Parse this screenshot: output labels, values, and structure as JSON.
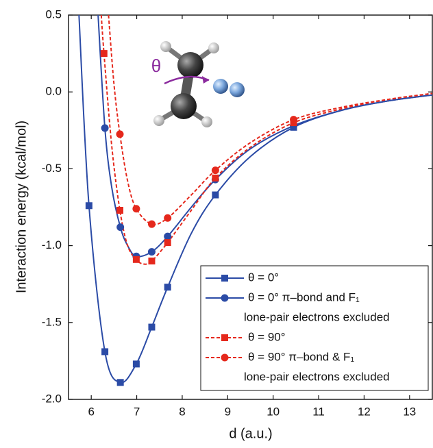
{
  "chart_data": {
    "type": "line",
    "x_label": "d (a.u.)",
    "y_label": "Interaction energy (kcal/mol)",
    "annotation": "θ",
    "xlim": [
      5.5,
      13.5
    ],
    "xticks": [
      6,
      7,
      8,
      9,
      10,
      11,
      12,
      13
    ],
    "ylim": [
      -2.0,
      0.5
    ],
    "yticks": [
      {
        "value": -2.0,
        "label": "-2.0"
      },
      {
        "value": -1.5,
        "label": "-1.5"
      },
      {
        "value": -1.0,
        "label": "-1.0"
      },
      {
        "value": -0.5,
        "label": "-0.5"
      },
      {
        "value": 0,
        "label": "0.0"
      },
      {
        "value": 0.5,
        "label": "0.5"
      }
    ],
    "series": [
      {
        "name": "θ = 0°",
        "color": "#2b4ba6",
        "marker": "square",
        "dash": false,
        "x": [
          5.95,
          6.3,
          6.64,
          6.99,
          7.33,
          7.68,
          8.73,
          10.45
        ],
        "values": [
          -0.74,
          -1.69,
          -1.89,
          -1.77,
          -1.53,
          -1.27,
          -0.67,
          -0.23
        ],
        "curve_x": [
          5.73,
          5.95,
          6.3,
          6.64,
          6.99,
          7.33,
          7.68,
          8.2,
          8.73,
          9.5,
          10.45,
          11.5,
          12.5,
          13.5
        ],
        "curve_values": [
          0.5,
          -0.74,
          -1.69,
          -1.89,
          -1.77,
          -1.53,
          -1.27,
          -0.92,
          -0.67,
          -0.42,
          -0.23,
          -0.12,
          -0.06,
          -0.02
        ]
      },
      {
        "name": "θ = 0° π–bond and F₁",
        "note": "lone-pair electrons excluded",
        "color": "#2b4ba6",
        "marker": "circle",
        "dash": false,
        "x": [
          6.3,
          6.64,
          6.99,
          7.33,
          7.68,
          8.73,
          10.45
        ],
        "values": [
          -0.235,
          -0.88,
          -1.07,
          -1.04,
          -0.94,
          -0.57,
          -0.22
        ],
        "curve_x": [
          6.15,
          6.3,
          6.45,
          6.64,
          6.8,
          6.99,
          7.33,
          7.68,
          8.2,
          8.73,
          9.5,
          10.45,
          11.5,
          12.5,
          13.5
        ],
        "curve_values": [
          0.5,
          -0.235,
          -0.62,
          -0.88,
          -1.0,
          -1.07,
          -1.04,
          -0.94,
          -0.75,
          -0.57,
          -0.37,
          -0.22,
          -0.12,
          -0.06,
          -0.02
        ]
      },
      {
        "name": "θ = 90°",
        "color": "#e5281c",
        "marker": "square",
        "dash": true,
        "x": [
          6.28,
          6.63,
          6.99,
          7.33,
          7.68,
          8.73,
          10.45
        ],
        "values": [
          0.25,
          -0.77,
          -1.09,
          -1.1,
          -0.98,
          -0.56,
          -0.2
        ],
        "curve_x": [
          6.22,
          6.28,
          6.45,
          6.63,
          6.8,
          6.99,
          7.15,
          7.33,
          7.68,
          8.2,
          8.73,
          9.5,
          10.45,
          11.5,
          12.5,
          13.5
        ],
        "curve_values": [
          0.5,
          0.25,
          -0.35,
          -0.77,
          -1.0,
          -1.09,
          -1.12,
          -1.1,
          -0.98,
          -0.77,
          -0.56,
          -0.36,
          -0.2,
          -0.11,
          -0.05,
          -0.01
        ]
      },
      {
        "name": "θ = 90° π–bond & F₁",
        "note": "lone-pair electrons excluded",
        "color": "#e5281c",
        "marker": "circle",
        "dash": true,
        "x": [
          6.63,
          6.99,
          7.33,
          7.68,
          8.73,
          10.45
        ],
        "values": [
          -0.275,
          -0.76,
          -0.86,
          -0.82,
          -0.51,
          -0.18
        ],
        "curve_x": [
          6.38,
          6.5,
          6.63,
          6.8,
          6.99,
          7.33,
          7.68,
          8.2,
          8.73,
          9.5,
          10.45,
          11.5,
          12.5,
          13.5
        ],
        "curve_values": [
          0.5,
          0.05,
          -0.275,
          -0.58,
          -0.76,
          -0.86,
          -0.82,
          -0.67,
          -0.51,
          -0.33,
          -0.18,
          -0.1,
          -0.05,
          -0.01
        ]
      }
    ]
  }
}
